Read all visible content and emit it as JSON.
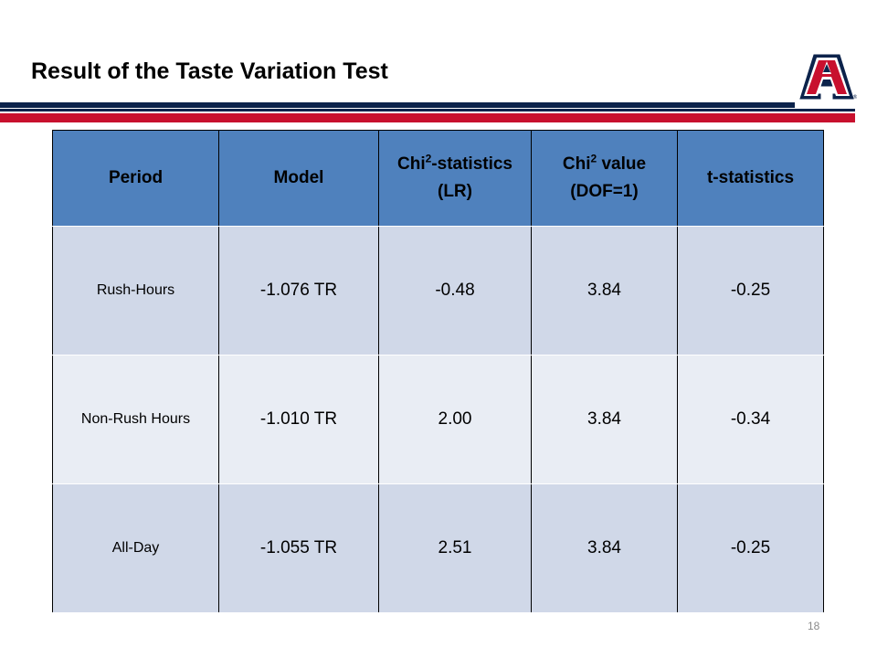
{
  "slide": {
    "title": "Result of the Taste Variation Test",
    "page_number": "18"
  },
  "colors": {
    "navy": "#0c234b",
    "red": "#c8102e",
    "header_blue": "#4f81bd",
    "row_dark": "#d0d8e8",
    "row_light": "#e9edf4"
  },
  "logo": {
    "icon": "university-block-a-logo",
    "text": "A",
    "mark": "®"
  },
  "table": {
    "headers": {
      "period": "Period",
      "model": "Model",
      "chi_stat_prefix": "Chi",
      "chi_stat_sup": "2",
      "chi_stat_suffix": "-statistics",
      "chi_stat_line2": "(LR)",
      "chi_val_prefix": "Chi",
      "chi_val_sup": "2",
      "chi_val_suffix": " value",
      "chi_val_line2": "(DOF=1)",
      "t_stat": "t-statistics"
    },
    "rows": [
      {
        "period": "Rush-Hours",
        "model": "-1.076 TR",
        "chi_stat": "-0.48",
        "chi_value": "3.84",
        "t_stat": "-0.25"
      },
      {
        "period": "Non-Rush Hours",
        "model": "-1.010 TR",
        "chi_stat": "2.00",
        "chi_value": "3.84",
        "t_stat": "-0.34"
      },
      {
        "period": "All-Day",
        "model": "-1.055 TR",
        "chi_stat": "2.51",
        "chi_value": "3.84",
        "t_stat": "-0.25"
      }
    ]
  }
}
